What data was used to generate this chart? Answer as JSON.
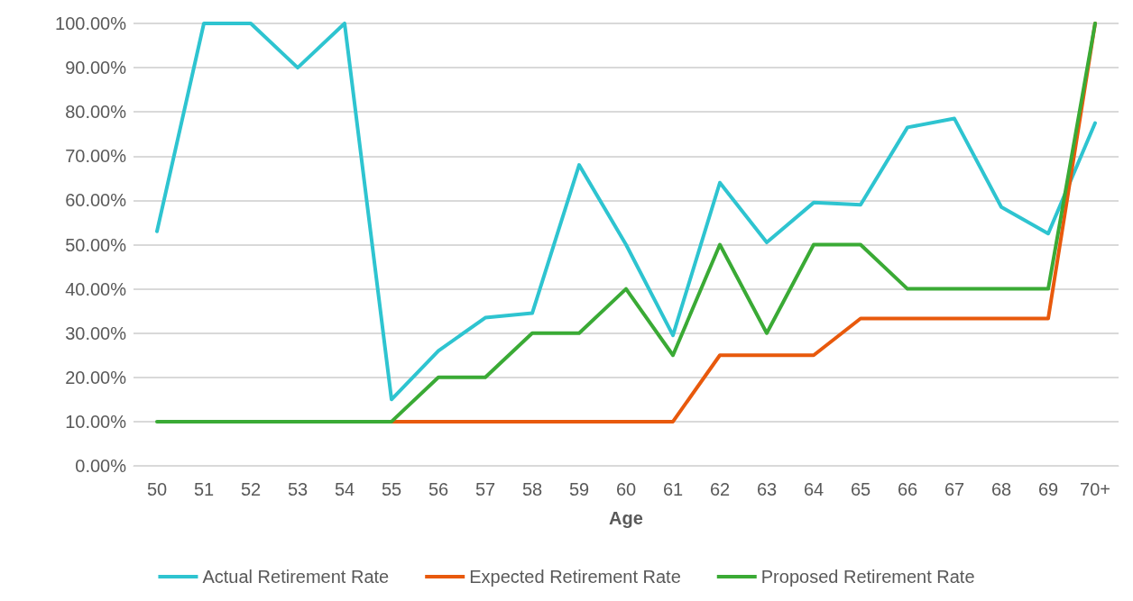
{
  "chart_data": {
    "type": "line",
    "xlabel": "Age",
    "categories": [
      "50",
      "51",
      "52",
      "53",
      "54",
      "55",
      "56",
      "57",
      "58",
      "59",
      "60",
      "61",
      "62",
      "63",
      "64",
      "65",
      "66",
      "67",
      "68",
      "69",
      "70+"
    ],
    "series": [
      {
        "name": "Actual Retirement Rate",
        "color": "#2ec4d0",
        "values": [
          53,
          100,
          100,
          90,
          100,
          15,
          26,
          33.5,
          34.5,
          68,
          50,
          29.5,
          64,
          50.5,
          59.5,
          59,
          76.5,
          78.5,
          58.5,
          52.5,
          77.5
        ]
      },
      {
        "name": "Expected Retirement Rate",
        "color": "#e8590c",
        "values": [
          null,
          null,
          null,
          null,
          null,
          10,
          10,
          10,
          10,
          10,
          10,
          10,
          25,
          25,
          25,
          33.3,
          33.3,
          33.3,
          33.3,
          33.3,
          100
        ]
      },
      {
        "name": "Proposed Retirement Rate",
        "color": "#3aaa35",
        "values": [
          10,
          10,
          10,
          10,
          10,
          10,
          20,
          20,
          30,
          30,
          40,
          25,
          50,
          30,
          50,
          50,
          40,
          40,
          40,
          40,
          100
        ]
      }
    ],
    "ylim": [
      0,
      100
    ],
    "yticks": [
      {
        "value": 0,
        "label": "0.00%"
      },
      {
        "value": 10,
        "label": "10.00%"
      },
      {
        "value": 20,
        "label": "20.00%"
      },
      {
        "value": 30,
        "label": "30.00%"
      },
      {
        "value": 40,
        "label": "40.00%"
      },
      {
        "value": 50,
        "label": "50.00%"
      },
      {
        "value": 60,
        "label": "60.00%"
      },
      {
        "value": 70,
        "label": "70.00%"
      },
      {
        "value": 80,
        "label": "80.00%"
      },
      {
        "value": 90,
        "label": "90.00%"
      },
      {
        "value": 100,
        "label": "100.00%"
      }
    ],
    "grid": "y",
    "legend": "bottom",
    "marker": "none",
    "line_style": "solid"
  }
}
